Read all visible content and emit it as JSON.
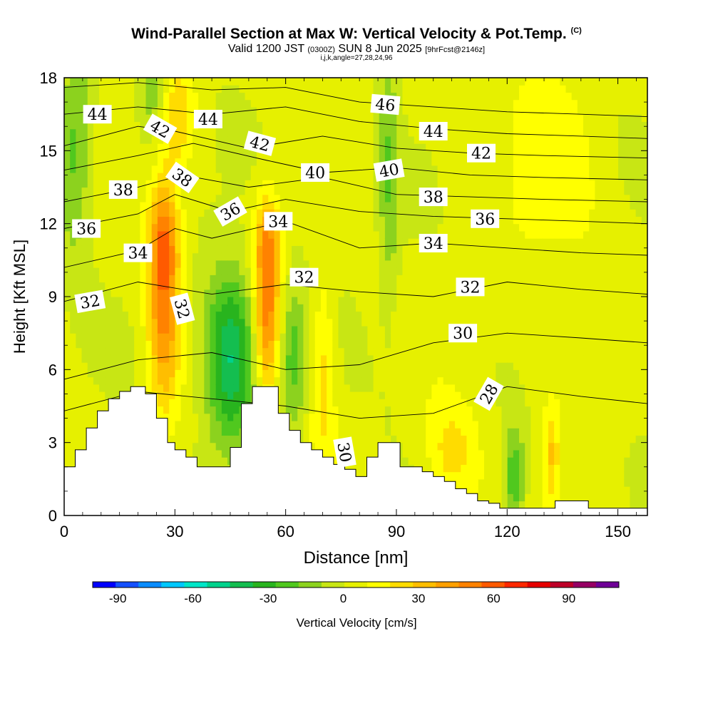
{
  "header": {
    "title": "Wind-Parallel Section at Max W: Vertical Velocity & Pot.Temp.",
    "copyright": "(C)",
    "valid_prefix": "Valid 1200 JST",
    "valid_utc": "(0300Z)",
    "valid_date": "SUN 8 Jun 2025",
    "forecast": "[9hrFcst@2146z]",
    "indices": "i,j,k,angle=27,28,24,96"
  },
  "colorbar": {
    "label": "Vertical Velocity [cm/s]",
    "ticks": [
      "-90",
      "-60",
      "-30",
      "0",
      "30",
      "60",
      "90"
    ],
    "tick_values": [
      -90,
      -60,
      -30,
      0,
      30,
      60,
      90
    ],
    "range": [
      -100,
      110
    ],
    "colors": [
      "#0000ff",
      "#1450ff",
      "#0a8cff",
      "#00c8ff",
      "#00e6c8",
      "#00d28c",
      "#14be50",
      "#28b41e",
      "#50c81e",
      "#8cd21e",
      "#c8e614",
      "#e6f000",
      "#ffff00",
      "#ffdc00",
      "#ffbe00",
      "#ffa000",
      "#ff8200",
      "#ff5a00",
      "#ff2800",
      "#e60000",
      "#be0028",
      "#960064",
      "#6e0096"
    ]
  },
  "chart_data": {
    "type": "heatmap",
    "xlabel": "Distance [nm]",
    "ylabel": "Height [Kft MSL]",
    "xlim": [
      0,
      158
    ],
    "ylim": [
      0,
      18
    ],
    "xticks": [
      0,
      30,
      60,
      90,
      120,
      150
    ],
    "yticks": [
      0,
      3,
      6,
      9,
      12,
      15,
      18
    ],
    "filled_field": "Vertical Velocity [cm/s]",
    "w_features": [
      {
        "x": 27,
        "z": 8.5,
        "w": 45,
        "sx": 3,
        "sz": 3.0
      },
      {
        "x": 27,
        "z": 11.5,
        "w": 30,
        "sx": 3,
        "sz": 1.5
      },
      {
        "x": 29,
        "z": 16.5,
        "w": 30,
        "sx": 4,
        "sz": 1.5
      },
      {
        "x": 55,
        "z": 8.3,
        "w": 50,
        "sx": 2.5,
        "sz": 2.5
      },
      {
        "x": 55,
        "z": 11.5,
        "w": 25,
        "sx": 2.5,
        "sz": 1.2
      },
      {
        "x": 45,
        "z": 6.5,
        "w": -50,
        "sx": 5,
        "sz": 2.5
      },
      {
        "x": 25,
        "z": 17,
        "w": -30,
        "sx": 3,
        "sz": 1.5
      },
      {
        "x": 3,
        "z": 15,
        "w": -25,
        "sx": 3,
        "sz": 3
      },
      {
        "x": 62,
        "z": 6.5,
        "w": -25,
        "sx": 3,
        "sz": 2
      },
      {
        "x": 70,
        "z": 6,
        "w": 20,
        "sx": 2.5,
        "sz": 3
      },
      {
        "x": 105,
        "z": 2.5,
        "w": 20,
        "sx": 5,
        "sz": 1.5
      },
      {
        "x": 122,
        "z": 1.5,
        "w": -30,
        "sx": 2,
        "sz": 1.5
      },
      {
        "x": 132,
        "z": 2.5,
        "w": 25,
        "sx": 1.5,
        "sz": 1.5
      },
      {
        "x": 88,
        "z": 14,
        "w": -20,
        "sx": 2,
        "sz": 4
      },
      {
        "x": 132,
        "z": 14,
        "w": 10,
        "sx": 10,
        "sz": 4
      }
    ],
    "terrain": {
      "x": [
        0,
        3,
        3,
        6,
        6,
        9,
        9,
        12,
        12,
        15,
        15,
        18,
        18,
        22,
        22,
        25,
        25,
        28,
        28,
        30,
        30,
        33,
        33,
        36,
        36,
        39,
        39,
        45,
        45,
        48,
        48,
        51,
        51,
        54,
        54,
        58,
        58,
        61,
        61,
        64,
        64,
        67,
        67,
        70,
        70,
        73,
        73,
        76,
        76,
        79,
        79,
        82,
        82,
        85,
        85,
        88,
        88,
        91,
        91,
        94,
        94,
        97,
        97,
        100,
        100,
        103,
        103,
        106,
        106,
        109,
        109,
        112,
        112,
        115,
        115,
        118,
        118,
        121,
        121,
        127,
        127,
        133,
        133,
        139,
        139,
        142,
        142,
        148,
        148,
        154,
        154,
        158
      ],
      "y": [
        2.0,
        2.0,
        2.7,
        2.7,
        3.6,
        3.6,
        4.3,
        4.3,
        4.8,
        4.8,
        5.1,
        5.1,
        5.3,
        5.3,
        5.0,
        5.0,
        4.0,
        4.0,
        3.0,
        3.0,
        2.7,
        2.7,
        2.4,
        2.4,
        2.0,
        2.0,
        2.0,
        2.0,
        2.8,
        2.8,
        4.6,
        4.6,
        5.3,
        5.3,
        5.3,
        5.3,
        4.2,
        4.2,
        3.5,
        3.5,
        3.0,
        3.0,
        2.7,
        2.7,
        2.4,
        2.4,
        2.1,
        2.1,
        1.9,
        1.9,
        1.6,
        1.6,
        2.4,
        2.4,
        3.0,
        3.0,
        3.0,
        3.0,
        2.0,
        2.0,
        2.0,
        2.0,
        1.8,
        1.8,
        1.6,
        1.6,
        1.4,
        1.4,
        1.1,
        1.1,
        0.9,
        0.9,
        0.6,
        0.6,
        0.5,
        0.5,
        0.3,
        0.3,
        0.3,
        0.3,
        0.3,
        0.3,
        0.6,
        0.6,
        0.6,
        0.6,
        0.3,
        0.3,
        0.3,
        0.3,
        0.3,
        0.3
      ]
    },
    "theta_contours": [
      {
        "level": 28,
        "label": "28",
        "x": [
          0,
          20,
          40,
          60,
          80,
          100,
          120,
          140,
          158
        ],
        "y": [
          4.3,
          5.1,
          4.8,
          4.5,
          4.0,
          4.2,
          5.3,
          4.9,
          4.6
        ],
        "labels": [
          {
            "x": 115,
            "y": 5.0,
            "rot": -60
          }
        ]
      },
      {
        "level": 30,
        "label": "30",
        "x": [
          0,
          20,
          40,
          60,
          80,
          100,
          120,
          140,
          158
        ],
        "y": [
          5.6,
          6.4,
          6.7,
          6.0,
          6.2,
          7.1,
          7.5,
          7.3,
          7.1
        ],
        "labels": [
          {
            "x": 76,
            "y": 2.6,
            "rot": 80
          },
          {
            "x": 108,
            "y": 7.5,
            "rot": 0
          }
        ]
      },
      {
        "level": 32,
        "label": "32",
        "x": [
          0,
          20,
          40,
          60,
          80,
          100,
          120,
          140,
          158
        ],
        "y": [
          8.8,
          9.6,
          9.1,
          9.5,
          9.2,
          9.0,
          9.6,
          9.3,
          9.1
        ],
        "labels": [
          {
            "x": 7,
            "y": 8.8,
            "rot": -10
          },
          {
            "x": 32,
            "y": 8.5,
            "rot": 75
          },
          {
            "x": 65,
            "y": 9.8,
            "rot": 0
          },
          {
            "x": 110,
            "y": 9.4,
            "rot": 0
          }
        ]
      },
      {
        "level": 34,
        "label": "34",
        "x": [
          0,
          20,
          30,
          40,
          60,
          80,
          100,
          120,
          140,
          158
        ],
        "y": [
          10.2,
          10.9,
          11.8,
          11.4,
          12.1,
          11.0,
          11.2,
          11.0,
          10.8,
          10.7
        ],
        "labels": [
          {
            "x": 20,
            "y": 10.8,
            "rot": 0
          },
          {
            "x": 58,
            "y": 12.1,
            "rot": 0
          },
          {
            "x": 100,
            "y": 11.2,
            "rot": 0
          }
        ]
      },
      {
        "level": 36,
        "label": "36",
        "x": [
          0,
          20,
          30,
          45,
          60,
          80,
          100,
          120,
          140,
          158
        ],
        "y": [
          11.8,
          12.4,
          13.2,
          12.5,
          13.0,
          12.5,
          12.3,
          12.2,
          12.1,
          12.0
        ],
        "labels": [
          {
            "x": 6,
            "y": 11.8,
            "rot": 0
          },
          {
            "x": 45,
            "y": 12.5,
            "rot": -30
          },
          {
            "x": 114,
            "y": 12.2,
            "rot": 0
          }
        ]
      },
      {
        "level": 38,
        "label": "38",
        "x": [
          0,
          20,
          32,
          50,
          70,
          90,
          110,
          130,
          158
        ],
        "y": [
          12.9,
          13.5,
          14.0,
          13.5,
          13.9,
          13.2,
          13.1,
          13.0,
          12.9
        ],
        "labels": [
          {
            "x": 16,
            "y": 13.4,
            "rot": 0
          },
          {
            "x": 32,
            "y": 13.9,
            "rot": 35
          },
          {
            "x": 100,
            "y": 13.1,
            "rot": 0
          }
        ]
      },
      {
        "level": 40,
        "label": "40",
        "x": [
          0,
          20,
          35,
          55,
          70,
          90,
          110,
          130,
          158
        ],
        "y": [
          14.2,
          14.8,
          15.3,
          14.6,
          14.1,
          14.3,
          14.0,
          13.9,
          13.8
        ],
        "labels": [
          {
            "x": 68,
            "y": 14.1,
            "rot": 0
          },
          {
            "x": 88,
            "y": 14.2,
            "rot": -10
          }
        ]
      },
      {
        "level": 42,
        "label": "42",
        "x": [
          0,
          20,
          30,
          50,
          70,
          90,
          110,
          130,
          158
        ],
        "y": [
          15.2,
          16.0,
          15.8,
          15.1,
          15.6,
          15.1,
          14.9,
          14.8,
          14.7
        ],
        "labels": [
          {
            "x": 26,
            "y": 15.9,
            "rot": 30
          },
          {
            "x": 53,
            "y": 15.3,
            "rot": 15
          },
          {
            "x": 113,
            "y": 14.9,
            "rot": 0
          }
        ]
      },
      {
        "level": 44,
        "label": "44",
        "x": [
          0,
          20,
          40,
          60,
          80,
          100,
          120,
          140,
          158
        ],
        "y": [
          16.5,
          16.8,
          16.5,
          16.8,
          16.2,
          15.9,
          15.7,
          15.6,
          15.5
        ],
        "labels": [
          {
            "x": 9,
            "y": 16.5,
            "rot": 0
          },
          {
            "x": 39,
            "y": 16.3,
            "rot": 0
          },
          {
            "x": 100,
            "y": 15.8,
            "rot": 0
          }
        ]
      },
      {
        "level": 46,
        "label": "46",
        "x": [
          0,
          20,
          40,
          60,
          80,
          100,
          120,
          140,
          158
        ],
        "y": [
          17.6,
          17.8,
          17.5,
          17.6,
          17.0,
          16.8,
          16.6,
          16.5,
          16.4
        ],
        "labels": [
          {
            "x": 87,
            "y": 16.9,
            "rot": 5
          }
        ]
      }
    ]
  }
}
